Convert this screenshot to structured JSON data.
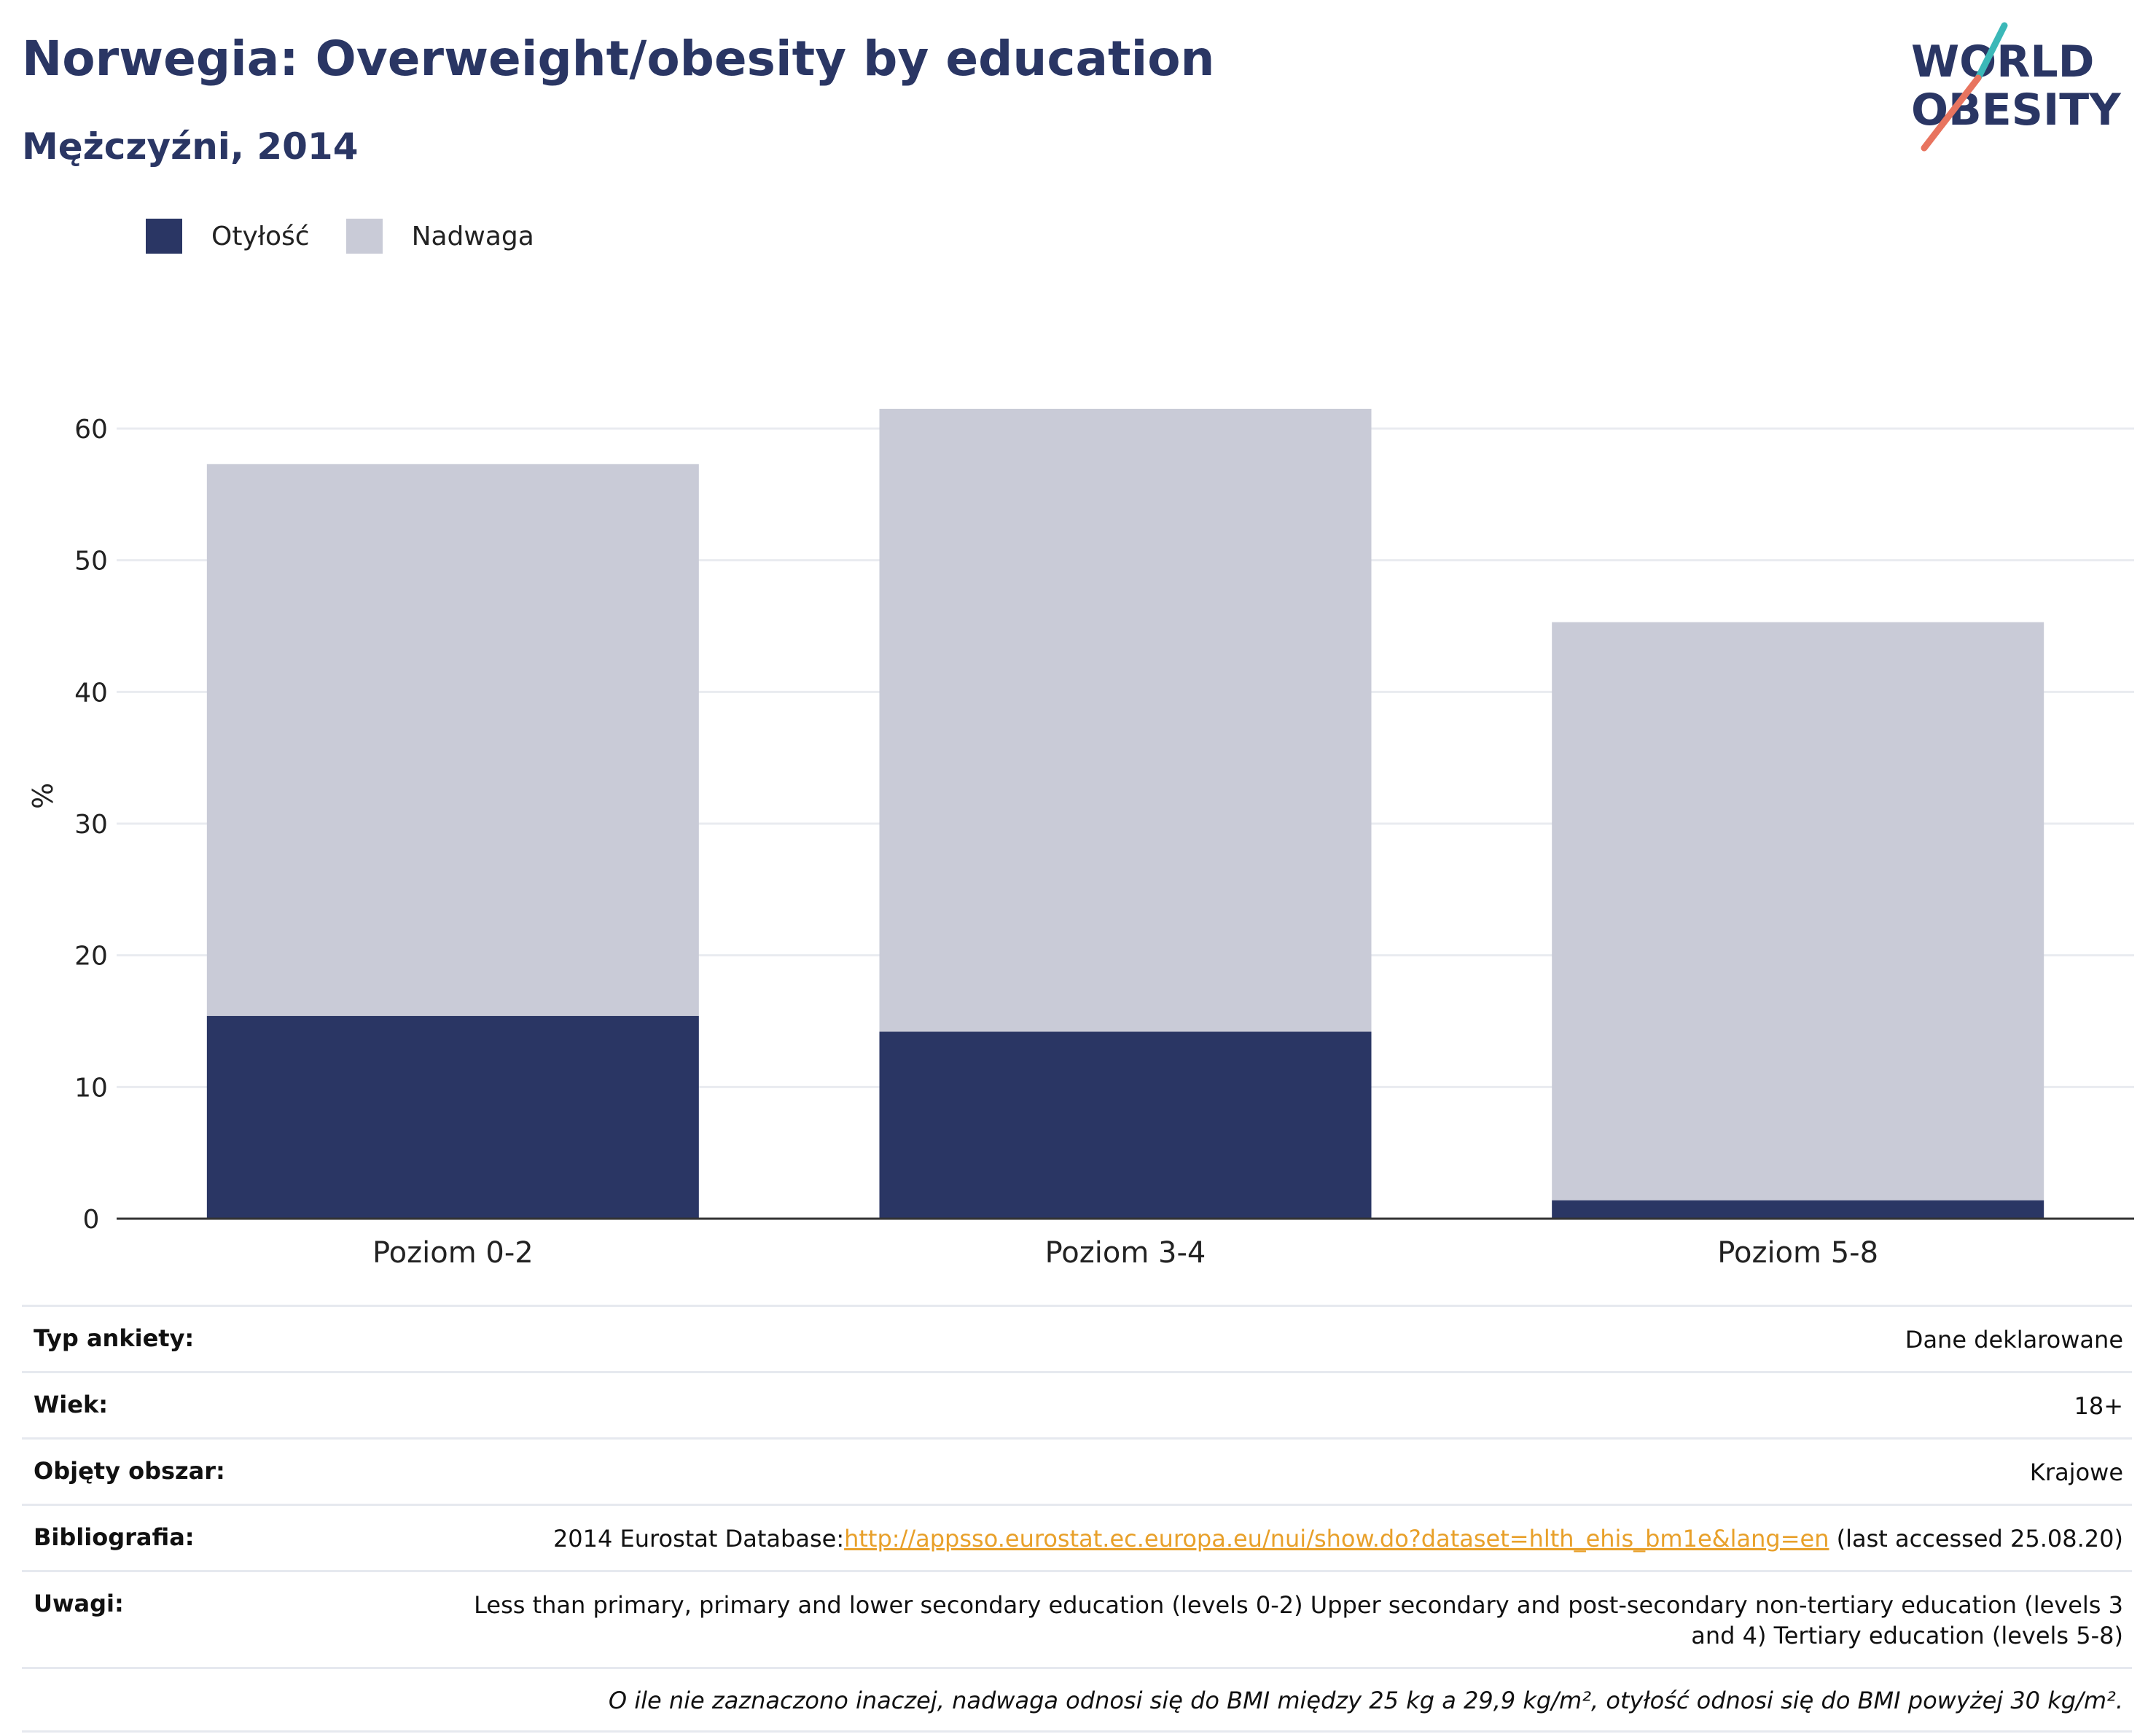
{
  "header": {
    "title": "Norwegia: Overweight/obesity by education",
    "subtitle": "Mężczyźni, 2014"
  },
  "logo": {
    "line1": "WORLD",
    "line2": "OBESITY",
    "accent_teal": "#3bb8b8",
    "accent_coral": "#e8745f"
  },
  "colors": {
    "obesity": "#2a3664",
    "overweight": "#c9cbd7",
    "grid": "#e9ebf0",
    "axis": "#333333",
    "text": "#222222"
  },
  "chart_data": {
    "type": "bar",
    "stacked": true,
    "title": "Norwegia: Overweight/obesity by education",
    "subtitle": "Mężczyźni, 2014",
    "xlabel": "",
    "ylabel": "%",
    "ylim": [
      0,
      65
    ],
    "yticks": [
      0,
      10,
      20,
      30,
      40,
      50,
      60
    ],
    "grid": true,
    "legend_position": "top-left",
    "categories": [
      "Poziom 0-2",
      "Poziom 3-4",
      "Poziom 5-8"
    ],
    "series": [
      {
        "name": "Otyłość",
        "values": [
          15.4,
          14.2,
          1.4
        ]
      },
      {
        "name": "Nadwaga",
        "values": [
          41.9,
          47.3,
          43.9
        ]
      }
    ]
  },
  "info": {
    "survey_label": "Typ ankiety:",
    "survey_value": "Dane deklarowane",
    "age_label": "Wiek:",
    "age_value": "18+",
    "area_label": "Objęty obszar:",
    "area_value": "Krajowe",
    "biblio_label": "Bibliografia:",
    "biblio_prefix": "2014 Eurostat Database:",
    "biblio_link": "http://appsso.eurostat.ec.europa.eu/nui/show.do?dataset=hlth_ehis_bm1e&lang=en",
    "biblio_suffix": " (last accessed 25.08.20)",
    "notes_label": "Uwagi:",
    "notes_value": "Less than primary, primary and lower secondary education (levels 0-2) Upper secondary and post-secondary non-tertiary education (levels 3 and 4) Tertiary education (levels 5-8)",
    "footnote": "O ile nie zaznaczono inaczej, nadwaga odnosi się do BMI między 25 kg a 29,9 kg/m², otyłość odnosi się do BMI powyżej 30 kg/m²."
  }
}
